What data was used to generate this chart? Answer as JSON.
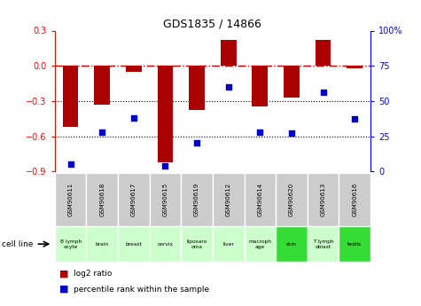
{
  "title": "GDS1835 / 14866",
  "gsm_labels": [
    "GSM90611",
    "GSM90618",
    "GSM90617",
    "GSM90615",
    "GSM90619",
    "GSM90612",
    "GSM90614",
    "GSM90620",
    "GSM90613",
    "GSM90616"
  ],
  "cell_lines": [
    "B lymph\nocyte",
    "brain",
    "breast",
    "cervix",
    "liposaro\noma",
    "liver",
    "macroph\nage",
    "skin",
    "T lymph\noblast",
    "testis"
  ],
  "cell_colors": [
    "#ccffcc",
    "#ccffcc",
    "#ccffcc",
    "#ccffcc",
    "#ccffcc",
    "#ccffcc",
    "#ccffcc",
    "#33dd33",
    "#ccffcc",
    "#33dd33"
  ],
  "log2_ratio": [
    -0.52,
    -0.33,
    -0.05,
    -0.82,
    -0.38,
    0.22,
    -0.35,
    -0.27,
    0.22,
    -0.02
  ],
  "percentile_rank": [
    5,
    28,
    38,
    4,
    20,
    60,
    28,
    27,
    56,
    37
  ],
  "ylim_left": [
    -0.9,
    0.3
  ],
  "ylim_right": [
    0,
    100
  ],
  "yticks_left": [
    -0.9,
    -0.6,
    -0.3,
    0.0,
    0.3
  ],
  "yticks_right": [
    0,
    25,
    50,
    75,
    100
  ],
  "bar_color": "#aa0000",
  "dot_color": "#0000cc",
  "hline_color": "#cc0000",
  "grid_color": "#000000",
  "bg_color": "#ffffff",
  "plot_bg": "#ffffff"
}
